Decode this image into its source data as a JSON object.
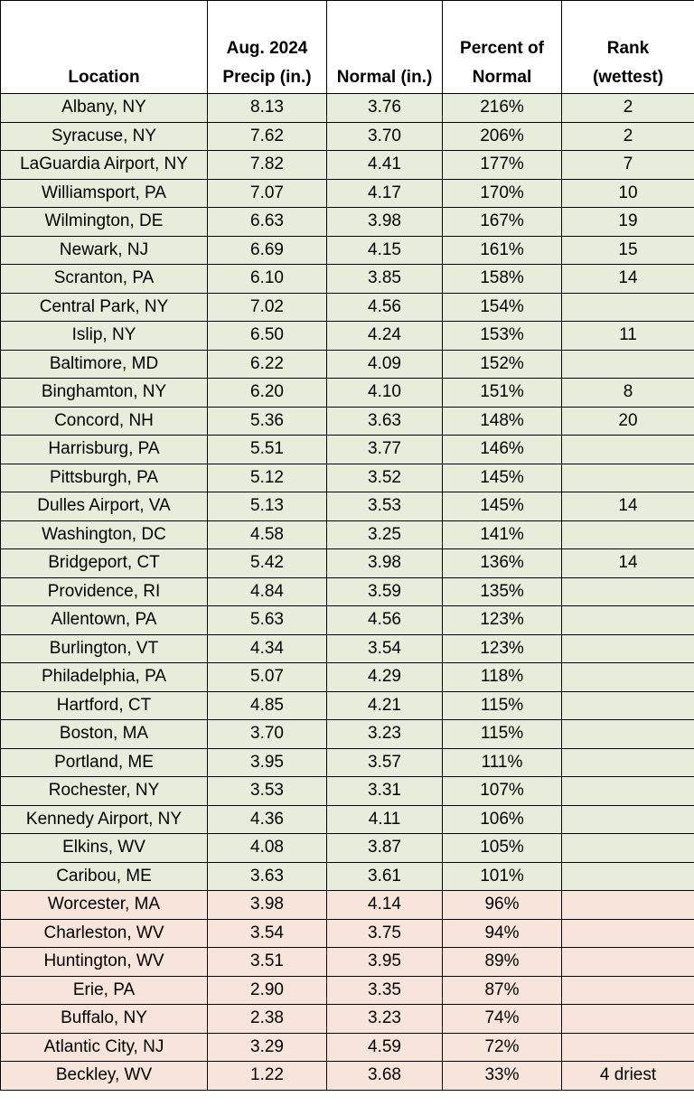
{
  "table": {
    "headers": {
      "location": "Location",
      "precip_line1": "Aug. 2024",
      "precip_line2": "Precip (in.)",
      "normal": "Normal (in.)",
      "percent_line1": "Percent of",
      "percent_line2": "Normal",
      "rank_line1": "Rank",
      "rank_line2": "(wettest)"
    },
    "colors": {
      "above_normal_fill": "#e6eedb",
      "below_normal_fill": "#f7e4da",
      "border": "#000000"
    },
    "rows": [
      {
        "location": "Albany, NY",
        "precip": "8.13",
        "normal": "3.76",
        "percent": "216%",
        "rank": "2",
        "category": "above"
      },
      {
        "location": "Syracuse, NY",
        "precip": "7.62",
        "normal": "3.70",
        "percent": "206%",
        "rank": "2",
        "category": "above"
      },
      {
        "location": "LaGuardia Airport, NY",
        "precip": "7.82",
        "normal": "4.41",
        "percent": "177%",
        "rank": "7",
        "category": "above"
      },
      {
        "location": "Williamsport, PA",
        "precip": "7.07",
        "normal": "4.17",
        "percent": "170%",
        "rank": "10",
        "category": "above"
      },
      {
        "location": "Wilmington, DE",
        "precip": "6.63",
        "normal": "3.98",
        "percent": "167%",
        "rank": "19",
        "category": "above"
      },
      {
        "location": "Newark, NJ",
        "precip": "6.69",
        "normal": "4.15",
        "percent": "161%",
        "rank": "15",
        "category": "above"
      },
      {
        "location": "Scranton, PA",
        "precip": "6.10",
        "normal": "3.85",
        "percent": "158%",
        "rank": "14",
        "category": "above"
      },
      {
        "location": "Central Park, NY",
        "precip": "7.02",
        "normal": "4.56",
        "percent": "154%",
        "rank": "",
        "category": "above"
      },
      {
        "location": "Islip, NY",
        "precip": "6.50",
        "normal": "4.24",
        "percent": "153%",
        "rank": "11",
        "category": "above"
      },
      {
        "location": "Baltimore, MD",
        "precip": "6.22",
        "normal": "4.09",
        "percent": "152%",
        "rank": "",
        "category": "above"
      },
      {
        "location": "Binghamton, NY",
        "precip": "6.20",
        "normal": "4.10",
        "percent": "151%",
        "rank": "8",
        "category": "above"
      },
      {
        "location": "Concord, NH",
        "precip": "5.36",
        "normal": "3.63",
        "percent": "148%",
        "rank": "20",
        "category": "above"
      },
      {
        "location": "Harrisburg, PA",
        "precip": "5.51",
        "normal": "3.77",
        "percent": "146%",
        "rank": "",
        "category": "above"
      },
      {
        "location": "Pittsburgh, PA",
        "precip": "5.12",
        "normal": "3.52",
        "percent": "145%",
        "rank": "",
        "category": "above"
      },
      {
        "location": "Dulles Airport, VA",
        "precip": "5.13",
        "normal": "3.53",
        "percent": "145%",
        "rank": "14",
        "category": "above"
      },
      {
        "location": "Washington, DC",
        "precip": "4.58",
        "normal": "3.25",
        "percent": "141%",
        "rank": "",
        "category": "above"
      },
      {
        "location": "Bridgeport, CT",
        "precip": "5.42",
        "normal": "3.98",
        "percent": "136%",
        "rank": "14",
        "category": "above"
      },
      {
        "location": "Providence, RI",
        "precip": "4.84",
        "normal": "3.59",
        "percent": "135%",
        "rank": "",
        "category": "above"
      },
      {
        "location": "Allentown, PA",
        "precip": "5.63",
        "normal": "4.56",
        "percent": "123%",
        "rank": "",
        "category": "above"
      },
      {
        "location": "Burlington, VT",
        "precip": "4.34",
        "normal": "3.54",
        "percent": "123%",
        "rank": "",
        "category": "above"
      },
      {
        "location": "Philadelphia, PA",
        "precip": "5.07",
        "normal": "4.29",
        "percent": "118%",
        "rank": "",
        "category": "above"
      },
      {
        "location": "Hartford, CT",
        "precip": "4.85",
        "normal": "4.21",
        "percent": "115%",
        "rank": "",
        "category": "above"
      },
      {
        "location": "Boston, MA",
        "precip": "3.70",
        "normal": "3.23",
        "percent": "115%",
        "rank": "",
        "category": "above"
      },
      {
        "location": "Portland, ME",
        "precip": "3.95",
        "normal": "3.57",
        "percent": "111%",
        "rank": "",
        "category": "above"
      },
      {
        "location": "Rochester, NY",
        "precip": "3.53",
        "normal": "3.31",
        "percent": "107%",
        "rank": "",
        "category": "above"
      },
      {
        "location": "Kennedy Airport, NY",
        "precip": "4.36",
        "normal": "4.11",
        "percent": "106%",
        "rank": "",
        "category": "above"
      },
      {
        "location": "Elkins, WV",
        "precip": "4.08",
        "normal": "3.87",
        "percent": "105%",
        "rank": "",
        "category": "above"
      },
      {
        "location": "Caribou, ME",
        "precip": "3.63",
        "normal": "3.61",
        "percent": "101%",
        "rank": "",
        "category": "above"
      },
      {
        "location": "Worcester, MA",
        "precip": "3.98",
        "normal": "4.14",
        "percent": "96%",
        "rank": "",
        "category": "below"
      },
      {
        "location": "Charleston, WV",
        "precip": "3.54",
        "normal": "3.75",
        "percent": "94%",
        "rank": "",
        "category": "below"
      },
      {
        "location": "Huntington, WV",
        "precip": "3.51",
        "normal": "3.95",
        "percent": "89%",
        "rank": "",
        "category": "below"
      },
      {
        "location": "Erie, PA",
        "precip": "2.90",
        "normal": "3.35",
        "percent": "87%",
        "rank": "",
        "category": "below"
      },
      {
        "location": "Buffalo, NY",
        "precip": "2.38",
        "normal": "3.23",
        "percent": "74%",
        "rank": "",
        "category": "below"
      },
      {
        "location": "Atlantic City, NJ",
        "precip": "3.29",
        "normal": "4.59",
        "percent": "72%",
        "rank": "",
        "category": "below"
      },
      {
        "location": "Beckley, WV",
        "precip": "1.22",
        "normal": "3.68",
        "percent": "33%",
        "rank": "4 driest",
        "category": "below"
      }
    ]
  }
}
